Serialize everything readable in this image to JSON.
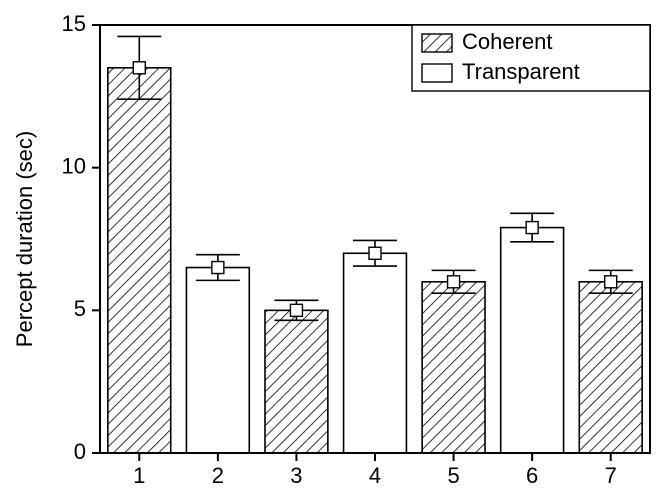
{
  "chart_data": {
    "type": "bar",
    "ylabel": "Percept duration (sec)",
    "categories": [
      "1",
      "2",
      "3",
      "4",
      "5",
      "6",
      "7"
    ],
    "series": [
      {
        "name": "Coherent",
        "color": "#000000",
        "hatch": true,
        "values": [
          13.5,
          null,
          5.0,
          null,
          6.0,
          null,
          6.0
        ],
        "errors": [
          1.1,
          null,
          0.35,
          null,
          0.4,
          null,
          0.4
        ]
      },
      {
        "name": "Transparent",
        "color": "#ffffff",
        "hatch": false,
        "values": [
          null,
          6.5,
          null,
          7.0,
          null,
          7.9,
          null
        ],
        "errors": [
          null,
          0.45,
          null,
          0.45,
          null,
          0.5,
          null
        ]
      }
    ],
    "ylim": [
      0,
      15
    ],
    "yticks": [
      0,
      5,
      10,
      15
    ],
    "grid": false,
    "legend": "upper right"
  }
}
